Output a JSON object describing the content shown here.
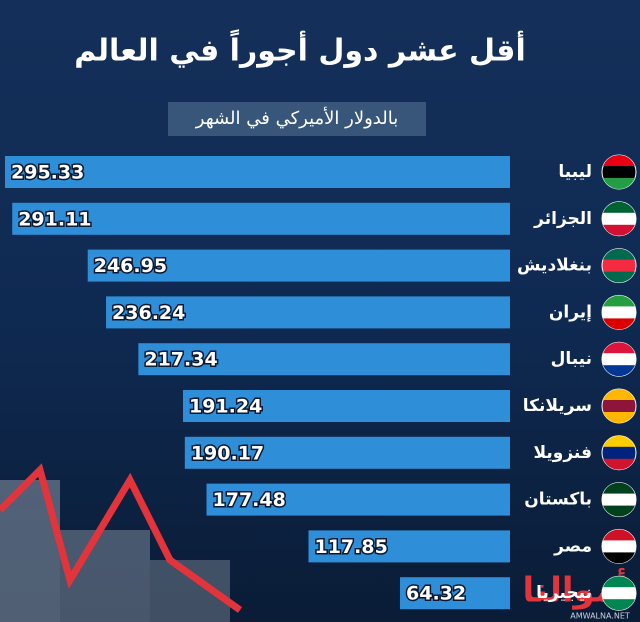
{
  "chart_data": {
    "type": "bar",
    "orientation": "horizontal",
    "title": "أقل عشر دول أجوراً في العالم",
    "subtitle": "بالدولار الأميركي في الشهر",
    "categories": [
      "ليبيا",
      "الجزائر",
      "بنغلاديش",
      "إيران",
      "نيبال",
      "سريلانكا",
      "فنزويلا",
      "باكستان",
      "مصر",
      "نيجيريا"
    ],
    "values": [
      295.33,
      291.11,
      246.95,
      236.24,
      217.34,
      191.24,
      190.17,
      177.48,
      117.85,
      64.32
    ],
    "color": "#2f8ed8"
  },
  "watermark": {
    "logo": "أموالنا",
    "url": "AMWALNA.NET"
  }
}
